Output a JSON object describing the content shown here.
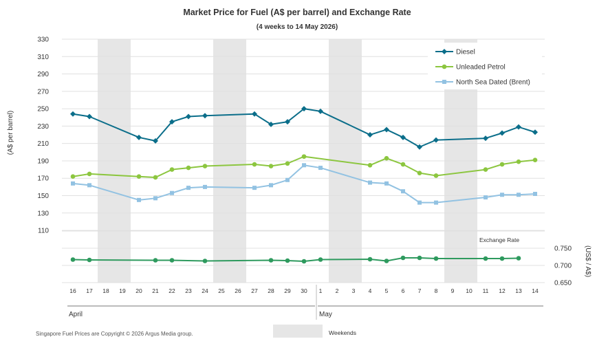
{
  "chart_data": {
    "type": "line",
    "title": "Market Price for Fuel (A$ per barrel) and Exchange Rate",
    "subtitle": "(4 weeks to 14 May 2026)",
    "ylabel": "(A$ per barrel)",
    "ylabel_right": "(US$ / A$)",
    "ylim": [
      110,
      330
    ],
    "yticks": [
      110,
      130,
      150,
      170,
      190,
      210,
      230,
      250,
      270,
      290,
      310,
      330
    ],
    "ylim_right": [
      0.65,
      0.75
    ],
    "yticks_right": [
      "0.650",
      "0.700",
      "0.750"
    ],
    "grid": true,
    "legend_position": "top-right",
    "day_labels": [
      "16",
      "17",
      "18",
      "19",
      "20",
      "21",
      "22",
      "23",
      "24",
      "25",
      "26",
      "27",
      "28",
      "29",
      "30",
      "1",
      "2",
      "3",
      "4",
      "5",
      "6",
      "7",
      "8",
      "9",
      "10",
      "11",
      "12",
      "13",
      "14"
    ],
    "month_labels": [
      "April",
      "May"
    ],
    "weekend_ranges": [
      [
        2,
        3
      ],
      [
        9,
        10
      ],
      [
        16,
        17
      ],
      [
        23,
        24
      ]
    ],
    "series": [
      {
        "name": "Diesel",
        "color": "#0b6e8a",
        "marker": "diamond",
        "points": [
          [
            0,
            244
          ],
          [
            1,
            241
          ],
          [
            4,
            217
          ],
          [
            5,
            213
          ],
          [
            6,
            235
          ],
          [
            7,
            241
          ],
          [
            8,
            242
          ],
          [
            11,
            244
          ],
          [
            12,
            232
          ],
          [
            13,
            235
          ],
          [
            14,
            250
          ],
          [
            15,
            247
          ],
          [
            18,
            220
          ],
          [
            19,
            226
          ],
          [
            20,
            217
          ],
          [
            21,
            206
          ],
          [
            22,
            214
          ],
          [
            25,
            216
          ],
          [
            26,
            222
          ],
          [
            27,
            229
          ],
          [
            28,
            223
          ]
        ]
      },
      {
        "name": "Unleaded Petrol",
        "color": "#8cc63f",
        "marker": "circle",
        "points": [
          [
            0,
            172
          ],
          [
            1,
            175
          ],
          [
            4,
            172
          ],
          [
            5,
            171
          ],
          [
            6,
            180
          ],
          [
            7,
            182
          ],
          [
            8,
            184
          ],
          [
            11,
            186
          ],
          [
            12,
            184
          ],
          [
            13,
            187
          ],
          [
            14,
            195
          ],
          [
            18,
            185
          ],
          [
            19,
            193
          ],
          [
            20,
            186
          ],
          [
            21,
            176
          ],
          [
            22,
            173
          ],
          [
            25,
            180
          ],
          [
            26,
            186
          ],
          [
            27,
            189
          ],
          [
            28,
            191
          ]
        ]
      },
      {
        "name": "North Sea Dated (Brent)",
        "color": "#92c2e2",
        "marker": "square",
        "points": [
          [
            0,
            164
          ],
          [
            1,
            162
          ],
          [
            4,
            145
          ],
          [
            5,
            147
          ],
          [
            6,
            153
          ],
          [
            7,
            159
          ],
          [
            8,
            160
          ],
          [
            11,
            159
          ],
          [
            12,
            162
          ],
          [
            13,
            168
          ],
          [
            14,
            185
          ],
          [
            15,
            182
          ],
          [
            18,
            165
          ],
          [
            19,
            164
          ],
          [
            20,
            155
          ],
          [
            21,
            142
          ],
          [
            22,
            142
          ],
          [
            25,
            148
          ],
          [
            26,
            151
          ],
          [
            27,
            151
          ],
          [
            28,
            152
          ]
        ]
      },
      {
        "name": "Exchange Rate",
        "color": "#2e9a5e",
        "marker": "circle",
        "axis": "right",
        "points": [
          [
            0,
            0.717
          ],
          [
            1,
            0.716
          ],
          [
            5,
            0.715
          ],
          [
            6,
            0.715
          ],
          [
            8,
            0.713
          ],
          [
            12,
            0.715
          ],
          [
            13,
            0.714
          ],
          [
            14,
            0.712
          ],
          [
            15,
            0.717
          ],
          [
            18,
            0.718
          ],
          [
            19,
            0.713
          ],
          [
            20,
            0.722
          ],
          [
            21,
            0.722
          ],
          [
            22,
            0.72
          ],
          [
            25,
            0.72
          ],
          [
            26,
            0.72
          ],
          [
            27,
            0.721
          ]
        ]
      }
    ]
  },
  "footer": {
    "copyright": "Singapore Fuel Prices are Copyright © 2026 Argus Media group.",
    "weekends_label": "Weekends"
  },
  "colors": {
    "weekend_band": "#e6e6e6",
    "grid": "#e0e0e0",
    "text": "#333333"
  }
}
